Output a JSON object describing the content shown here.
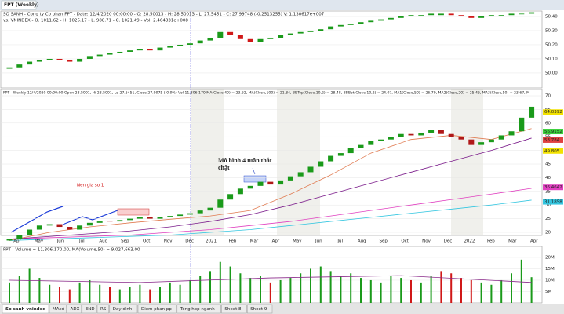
{
  "window_tab": "FPT (Weekly)",
  "compare_panel": {
    "type": "candlestick",
    "header_1": "SO SANH - Cong ty Co phan FPT - Date: 12/4/2020 00:00:00 - O: 28.50013 - H: 28.50013 - L: 27.5451 - C: 27.99748 (-0.2513255) V: 1.130617e+007",
    "header_2": "vs. VNINDEX - O: 1011.62 - H: 1025.17 - L: 988.71 - C: 1021.49 - Vol: 2.464831e+008",
    "open": [
      50.03,
      50.04,
      50.06,
      50.08,
      50.09,
      50.1,
      50.09,
      50.08,
      50.1,
      50.12,
      50.13,
      50.14,
      50.15,
      50.16,
      50.17,
      50.16,
      50.18,
      50.19,
      50.2,
      50.21,
      50.23,
      50.25,
      50.29,
      50.27,
      50.24,
      50.22,
      50.24,
      50.25,
      50.27,
      50.28,
      50.29,
      50.3,
      50.31,
      50.33,
      50.34,
      50.35,
      50.36,
      50.37,
      50.38,
      50.39,
      50.4,
      50.4,
      50.41,
      50.41,
      50.42,
      50.41,
      50.4,
      50.39,
      50.4,
      50.41,
      50.41,
      50.42,
      50.42
    ],
    "close": [
      50.04,
      50.06,
      50.08,
      50.09,
      50.1,
      50.09,
      50.08,
      50.1,
      50.12,
      50.13,
      50.14,
      50.15,
      50.16,
      50.17,
      50.16,
      50.18,
      50.19,
      50.2,
      50.21,
      50.23,
      50.25,
      50.29,
      50.27,
      50.24,
      50.22,
      50.24,
      50.25,
      50.27,
      50.28,
      50.29,
      50.3,
      50.31,
      50.33,
      50.34,
      50.35,
      50.36,
      50.37,
      50.38,
      50.39,
      50.4,
      50.41,
      50.41,
      50.42,
      50.42,
      50.41,
      50.4,
      50.39,
      50.4,
      50.41,
      50.41,
      50.42,
      50.42,
      50.43
    ],
    "ylim": [
      49.894,
      50.439
    ],
    "yticks": [
      {
        "value": 50.0,
        "label": "50.00"
      },
      {
        "value": 50.1,
        "label": "50.10"
      },
      {
        "value": 50.2,
        "label": "50.20"
      },
      {
        "value": 50.3,
        "label": "50.30"
      },
      {
        "value": 50.4,
        "label": "50.40"
      }
    ],
    "up_color": "#1a9a1a",
    "down_color": "#d01818"
  },
  "price_panel": {
    "type": "candlestick",
    "header": "FPT - Weekly 12/4/2020 00:00:00 Open 28.5001, Hi 28.5001, Lo 27.5451, Close 27.9975 (-0.9%) Vol 11,306,170 MA(Close,40) = 23.62, MA(Close,100) = 21.84, BBTop(Close,10,2) = 28.48, BBBot(Close,10,2) = 24.07, MA1(Close,50) = 26.79, MA2(Close,20) = 25.46, MA3(Close,50) = 23.67, M",
    "open": [
      17,
      17.5,
      19,
      21,
      22.5,
      23,
      22,
      21,
      22.5,
      23.5,
      24.2,
      24,
      24.5,
      25,
      25.5,
      25,
      25.5,
      26,
      26.5,
      27,
      28,
      29,
      32,
      34,
      36,
      37,
      38.5,
      37.5,
      39,
      40.5,
      42,
      44,
      46,
      48,
      49,
      51,
      52,
      53.5,
      54,
      55,
      56,
      55.5,
      56.5,
      57.5,
      56,
      55,
      54,
      52,
      53,
      54,
      55.5,
      57,
      62
    ],
    "close": [
      17.5,
      19,
      21,
      22.5,
      23,
      22,
      21,
      22.5,
      23.5,
      24,
      24,
      24.5,
      25,
      25.5,
      25,
      25.5,
      26,
      26.5,
      27,
      28,
      29,
      32,
      34,
      36,
      37,
      38.5,
      37.5,
      39,
      40.5,
      42,
      44,
      46,
      48,
      49,
      51,
      52,
      53.5,
      54,
      55,
      56,
      55.5,
      56.5,
      57.5,
      56,
      55,
      54,
      52,
      53,
      54,
      55.5,
      57,
      62,
      66
    ],
    "up_color": "#1a9a1a",
    "down_color": "#b01818",
    "lines": [
      {
        "name": "MA(Close,100)",
        "color": "#33c6e0",
        "x": [
          0,
          4,
          8,
          12,
          16,
          20,
          24,
          28,
          32,
          36,
          40,
          44,
          48,
          52
        ],
        "values": [
          17,
          17.5,
          18,
          18.5,
          19,
          20,
          21,
          22.5,
          24,
          25.5,
          27,
          28.5,
          30,
          31.8
        ]
      },
      {
        "color": "#e040c0",
        "x": [
          0,
          4,
          8,
          12,
          16,
          20,
          24,
          28,
          32,
          36,
          40,
          44,
          48,
          52
        ],
        "values": [
          17.5,
          18,
          18.5,
          19,
          20,
          21,
          22.5,
          24,
          26,
          28,
          30,
          32,
          34,
          36.1
        ]
      },
      {
        "name": "MA1(Close,50)",
        "color": "#7a1a8a",
        "x": [
          0,
          4,
          8,
          12,
          16,
          20,
          24,
          28,
          32,
          36,
          40,
          44,
          48,
          52
        ],
        "values": [
          17.5,
          18.5,
          19.5,
          20.5,
          22,
          24,
          26.5,
          30,
          34,
          38,
          42,
          46,
          50,
          54.5
        ]
      },
      {
        "name": "MA2(Close,20)",
        "color": "#e07a50",
        "x": [
          0,
          4,
          8,
          12,
          16,
          20,
          24,
          28,
          32,
          36,
          40,
          44,
          48,
          52
        ],
        "values": [
          17,
          20,
          22,
          23.5,
          24.8,
          26,
          28,
          34,
          41,
          49,
          54,
          55.5,
          54,
          58
        ]
      }
    ],
    "price_tags": [
      {
        "value": 64.0392,
        "color": "#f2e200"
      },
      {
        "value": 56.9152,
        "color": "#3ad13a"
      },
      {
        "value": 53.784,
        "color": "#e04040"
      },
      {
        "value": 49.805,
        "color": "#f2e200"
      },
      {
        "value": 36.4642,
        "color": "#e040c0"
      },
      {
        "value": 31.1858,
        "color": "#33c6e0"
      }
    ],
    "ylim": [
      18.85,
      72.3
    ],
    "yticks": [
      20,
      25,
      30,
      35,
      40,
      45,
      50,
      55,
      60,
      65,
      70
    ],
    "annotation_1": "Mô hình 4 tuần thắt",
    "annotation_2": "chặt",
    "annotation_3": "Nen gia so 1"
  },
  "date_axis": [
    "Apr",
    "May",
    "Jun",
    "Jul",
    "Aug",
    "Sep",
    "Oct",
    "Nov",
    "Dec",
    "2021",
    "Feb",
    "Mar",
    "Apr",
    "May",
    "Jun",
    "Jul",
    "Aug",
    "Sep",
    "Oct",
    "Nov",
    "Dec",
    "2022",
    "Feb",
    "Mar",
    "Apr"
  ],
  "volume_panel": {
    "type": "bar",
    "header": "FPT - Volume = 11,306,170.00, MA(Volume,50) = 9,027,663.00",
    "values": [
      9000000,
      12000000,
      15000000,
      11000000,
      8000000,
      7000000,
      6000000,
      9000000,
      10000000,
      8000000,
      7000000,
      6000000,
      7000000,
      8000000,
      6000000,
      7000000,
      9000000,
      8000000,
      10000000,
      12000000,
      14000000,
      18000000,
      16000000,
      13000000,
      11000000,
      12000000,
      9000000,
      10000000,
      11000000,
      13000000,
      15000000,
      16000000,
      14000000,
      12000000,
      13000000,
      11000000,
      10000000,
      9000000,
      12000000,
      11000000,
      10000000,
      9000000,
      12000000,
      14000000,
      13000000,
      11000000,
      10000000,
      9000000,
      8000000,
      10000000,
      13000000,
      19000000,
      11306170
    ],
    "ma": {
      "color": "#8a2a8a",
      "x": [
        0,
        13,
        26,
        39,
        52
      ],
      "values": [
        10000000,
        9000000,
        11000000,
        12000000,
        9027663
      ]
    },
    "ylim": [
      0,
      24800000
    ],
    "yticks": [
      {
        "value": 5000000,
        "label": "5M"
      },
      {
        "value": 10000000,
        "label": "10M"
      },
      {
        "value": 15000000,
        "label": "15M"
      },
      {
        "value": 20000000,
        "label": "20M"
      }
    ]
  },
  "sheet_tabs": [
    "So sanh vnindex",
    "MAcd",
    "ADX",
    "END",
    "RS",
    "Day dinh",
    "Diem phan pp",
    "Tong hop nganh",
    "Sheet 8",
    "Sheet 9"
  ]
}
